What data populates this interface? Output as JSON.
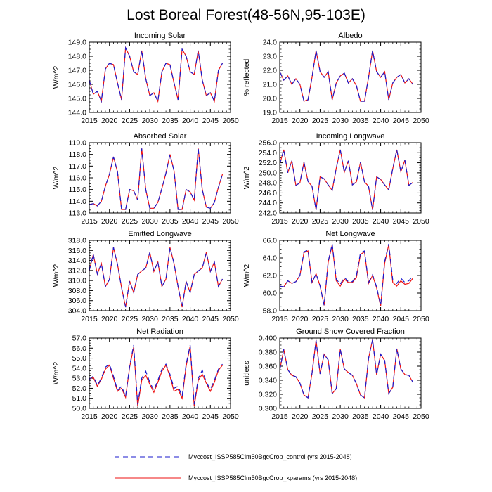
{
  "figure_title": "Lost Boreal Forest(48-56N,95-103E)",
  "colors": {
    "control": "#1a1acc",
    "kparams": "#ee1111",
    "axis": "#000000"
  },
  "legend": [
    {
      "label": "Myccost_ISSP585Clm50BgcCrop_control (yrs 2015-2048)",
      "series": "control",
      "dash": "dashed"
    },
    {
      "label": "Myccost_ISSP585Clm50BgcCrop_kparams (yrs 2015-2048)",
      "series": "kparams",
      "dash": "solid"
    }
  ],
  "chart_data": [
    {
      "type": "line",
      "title": "Incoming Solar",
      "ylabel": "W/m^2",
      "xlim": [
        2015,
        2050
      ],
      "xticks": [
        2015,
        2020,
        2025,
        2030,
        2035,
        2040,
        2045,
        2050
      ],
      "ylim": [
        144,
        149
      ],
      "yticks": [
        "144.0",
        "145.0",
        "146.0",
        "147.0",
        "148.0",
        "149.0"
      ],
      "x": [
        2015,
        2016,
        2017,
        2018,
        2019,
        2020,
        2021,
        2022,
        2023,
        2024,
        2025,
        2026,
        2027,
        2028,
        2029,
        2030,
        2031,
        2032,
        2033,
        2034,
        2035,
        2036,
        2037,
        2038,
        2039,
        2040,
        2041,
        2042,
        2043,
        2044,
        2045,
        2046,
        2047,
        2048
      ],
      "series": [
        {
          "name": "control",
          "values": [
            146.3,
            145.3,
            145.5,
            144.8,
            147.1,
            147.5,
            147.4,
            146.1,
            144.9,
            148.6,
            148.0,
            146.9,
            146.7,
            148.4,
            146.4,
            145.2,
            145.4,
            144.8,
            146.9,
            147.5,
            147.4,
            146.1,
            144.9,
            148.5,
            148.0,
            146.9,
            146.7,
            148.4,
            146.3,
            145.2,
            145.4,
            144.8,
            147.0,
            147.5
          ]
        },
        {
          "name": "kparams",
          "values": [
            146.3,
            145.3,
            145.5,
            144.8,
            147.1,
            147.5,
            147.4,
            146.1,
            144.9,
            148.6,
            148.0,
            146.9,
            146.7,
            148.4,
            146.4,
            145.2,
            145.4,
            144.8,
            146.9,
            147.5,
            147.4,
            146.1,
            144.9,
            148.5,
            148.0,
            146.9,
            146.7,
            148.4,
            146.3,
            145.2,
            145.4,
            144.8,
            147.0,
            147.5
          ]
        }
      ]
    },
    {
      "type": "line",
      "title": "Albedo",
      "ylabel": "% reflected",
      "xlim": [
        2015,
        2050
      ],
      "xticks": [
        2015,
        2020,
        2025,
        2030,
        2035,
        2040,
        2045,
        2050
      ],
      "ylim": [
        19,
        24
      ],
      "yticks": [
        "19.0",
        "20.0",
        "21.0",
        "22.0",
        "23.0",
        "24.0"
      ],
      "x": [
        2015,
        2016,
        2017,
        2018,
        2019,
        2020,
        2021,
        2022,
        2023,
        2024,
        2025,
        2026,
        2027,
        2028,
        2029,
        2030,
        2031,
        2032,
        2033,
        2034,
        2035,
        2036,
        2037,
        2038,
        2039,
        2040,
        2041,
        2042,
        2043,
        2044,
        2045,
        2046,
        2047,
        2048
      ],
      "series": [
        {
          "name": "control",
          "values": [
            21.9,
            21.3,
            21.6,
            21.0,
            21.4,
            21.0,
            19.8,
            19.9,
            21.5,
            23.4,
            21.9,
            21.5,
            21.9,
            19.9,
            21.1,
            21.6,
            21.8,
            21.1,
            21.4,
            20.9,
            19.8,
            19.8,
            21.5,
            23.4,
            21.9,
            21.5,
            21.9,
            19.9,
            21.1,
            21.5,
            21.7,
            21.1,
            21.4,
            21.0
          ]
        },
        {
          "name": "kparams",
          "values": [
            21.9,
            21.3,
            21.6,
            21.0,
            21.4,
            21.0,
            19.8,
            19.9,
            21.5,
            23.4,
            21.9,
            21.5,
            21.9,
            19.9,
            21.1,
            21.6,
            21.8,
            21.1,
            21.4,
            20.9,
            19.8,
            19.8,
            21.5,
            23.4,
            21.9,
            21.5,
            21.9,
            19.9,
            21.1,
            21.5,
            21.7,
            21.1,
            21.4,
            21.0
          ]
        }
      ]
    },
    {
      "type": "line",
      "title": "Absorbed Solar",
      "ylabel": "W/m^2",
      "xlim": [
        2015,
        2050
      ],
      "xticks": [
        2015,
        2020,
        2025,
        2030,
        2035,
        2040,
        2045,
        2050
      ],
      "ylim": [
        113,
        119
      ],
      "yticks": [
        "113.0",
        "114.0",
        "115.0",
        "116.0",
        "117.0",
        "118.0",
        "119.0"
      ],
      "x": [
        2015,
        2016,
        2017,
        2018,
        2019,
        2020,
        2021,
        2022,
        2023,
        2024,
        2025,
        2026,
        2027,
        2028,
        2029,
        2030,
        2031,
        2032,
        2033,
        2034,
        2035,
        2036,
        2037,
        2038,
        2039,
        2040,
        2041,
        2042,
        2043,
        2044,
        2045,
        2046,
        2047,
        2048
      ],
      "series": [
        {
          "name": "control",
          "values": [
            113.7,
            113.8,
            113.6,
            114.0,
            115.3,
            116.3,
            117.8,
            116.5,
            113.3,
            113.3,
            115.0,
            114.9,
            114.1,
            118.5,
            115.0,
            113.4,
            113.4,
            113.9,
            115.1,
            116.4,
            118.0,
            116.6,
            113.3,
            113.3,
            115.0,
            114.8,
            114.1,
            118.5,
            115.0,
            113.5,
            113.4,
            113.9,
            115.2,
            116.3
          ]
        },
        {
          "name": "kparams",
          "values": [
            113.7,
            113.8,
            113.6,
            114.0,
            115.3,
            116.3,
            117.8,
            116.5,
            113.3,
            113.3,
            115.0,
            114.9,
            114.1,
            118.5,
            115.0,
            113.4,
            113.4,
            113.9,
            115.1,
            116.4,
            118.0,
            116.6,
            113.3,
            113.3,
            115.0,
            114.8,
            114.1,
            118.5,
            115.0,
            113.5,
            113.4,
            113.9,
            115.2,
            116.3
          ]
        }
      ]
    },
    {
      "type": "line",
      "title": "Incoming Longwave",
      "ylabel": "W/m^2",
      "xlim": [
        2015,
        2050
      ],
      "xticks": [
        2015,
        2020,
        2025,
        2030,
        2035,
        2040,
        2045,
        2050
      ],
      "ylim": [
        242,
        256
      ],
      "yticks": [
        "242.0",
        "244.0",
        "246.0",
        "248.0",
        "250.0",
        "252.0",
        "254.0",
        "256.0"
      ],
      "x": [
        2015,
        2016,
        2017,
        2018,
        2019,
        2020,
        2021,
        2022,
        2023,
        2024,
        2025,
        2026,
        2027,
        2028,
        2029,
        2030,
        2031,
        2032,
        2033,
        2034,
        2035,
        2036,
        2037,
        2038,
        2039,
        2040,
        2041,
        2042,
        2043,
        2044,
        2045,
        2046,
        2047,
        2048
      ],
      "series": [
        {
          "name": "control",
          "values": [
            251.7,
            254.6,
            250.0,
            252.4,
            247.5,
            248.0,
            252.1,
            248.3,
            247.3,
            242.6,
            249.2,
            248.8,
            247.6,
            246.5,
            250.9,
            254.6,
            250.1,
            252.4,
            247.6,
            248.2,
            252.1,
            248.2,
            247.3,
            242.6,
            249.2,
            248.7,
            247.6,
            246.6,
            250.8,
            254.6,
            250.2,
            252.5,
            247.5,
            248.1
          ]
        },
        {
          "name": "kparams",
          "values": [
            251.7,
            254.6,
            250.0,
            252.4,
            247.5,
            248.0,
            252.1,
            248.3,
            247.3,
            242.6,
            249.2,
            248.8,
            247.6,
            246.5,
            250.9,
            254.6,
            250.1,
            252.4,
            247.6,
            248.2,
            252.1,
            248.2,
            247.3,
            242.6,
            249.2,
            248.7,
            247.6,
            246.6,
            250.8,
            254.6,
            250.2,
            252.5,
            247.5,
            248.1
          ]
        }
      ]
    },
    {
      "type": "line",
      "title": "Emitted Longwave",
      "ylabel": "W/m^2",
      "xlim": [
        2015,
        2050
      ],
      "xticks": [
        2015,
        2020,
        2025,
        2030,
        2035,
        2040,
        2045,
        2050
      ],
      "ylim": [
        304,
        318
      ],
      "yticks": [
        "304.0",
        "306.0",
        "308.0",
        "310.0",
        "312.0",
        "314.0",
        "316.0",
        "318.0"
      ],
      "x": [
        2015,
        2016,
        2017,
        2018,
        2019,
        2020,
        2021,
        2022,
        2023,
        2024,
        2025,
        2026,
        2027,
        2028,
        2029,
        2030,
        2031,
        2032,
        2033,
        2034,
        2035,
        2036,
        2037,
        2038,
        2039,
        2040,
        2041,
        2042,
        2043,
        2044,
        2045,
        2046,
        2047,
        2048
      ],
      "series": [
        {
          "name": "control",
          "values": [
            312.0,
            315.2,
            311.3,
            313.4,
            308.8,
            310.2,
            316.6,
            313.2,
            308.6,
            304.7,
            309.9,
            307.6,
            311.2,
            311.9,
            312.5,
            315.6,
            311.8,
            313.7,
            308.8,
            310.3,
            316.6,
            313.4,
            308.8,
            304.7,
            309.8,
            307.6,
            311.2,
            311.9,
            312.5,
            315.6,
            311.8,
            313.7,
            308.8,
            310.3
          ]
        },
        {
          "name": "kparams",
          "values": [
            312.0,
            315.2,
            311.3,
            313.4,
            308.8,
            310.2,
            316.6,
            313.2,
            308.6,
            304.7,
            309.9,
            307.6,
            311.2,
            311.9,
            312.5,
            315.6,
            311.8,
            313.7,
            308.8,
            310.3,
            316.6,
            313.4,
            308.8,
            304.7,
            309.8,
            307.6,
            311.2,
            311.9,
            312.5,
            315.6,
            311.8,
            313.7,
            308.8,
            310.3
          ]
        }
      ]
    },
    {
      "type": "line",
      "title": "Net Longwave",
      "ylabel": "W/m^2",
      "xlim": [
        2015,
        2050
      ],
      "xticks": [
        2015,
        2020,
        2025,
        2030,
        2035,
        2040,
        2045,
        2050
      ],
      "ylim": [
        58,
        66
      ],
      "yticks": [
        "58.0",
        "60.0",
        "62.0",
        "64.0",
        "66.0"
      ],
      "x": [
        2015,
        2016,
        2017,
        2018,
        2019,
        2020,
        2021,
        2022,
        2023,
        2024,
        2025,
        2026,
        2027,
        2028,
        2029,
        2030,
        2031,
        2032,
        2033,
        2034,
        2035,
        2036,
        2037,
        2038,
        2039,
        2040,
        2041,
        2042,
        2043,
        2044,
        2045,
        2046,
        2047,
        2048
      ],
      "series": [
        {
          "name": "control",
          "values": [
            60.8,
            60.7,
            61.4,
            61.1,
            61.3,
            62.0,
            64.7,
            64.9,
            61.2,
            62.2,
            60.8,
            58.6,
            63.6,
            65.6,
            61.6,
            61.0,
            61.8,
            61.3,
            61.3,
            62.0,
            64.6,
            64.8,
            61.2,
            62.1,
            60.7,
            58.6,
            63.6,
            65.6,
            61.5,
            61.1,
            61.7,
            61.2,
            61.4,
            62.0
          ]
        },
        {
          "name": "kparams",
          "values": [
            60.8,
            60.7,
            61.4,
            61.1,
            61.3,
            62.0,
            64.6,
            64.8,
            61.2,
            62.2,
            60.8,
            58.6,
            63.5,
            65.5,
            61.4,
            60.8,
            61.6,
            61.2,
            61.2,
            61.8,
            64.4,
            64.7,
            61.1,
            62.0,
            60.6,
            58.5,
            63.4,
            65.5,
            61.2,
            60.8,
            61.4,
            61.0,
            61.1,
            61.7
          ]
        }
      ]
    },
    {
      "type": "line",
      "title": "Net Radiation",
      "ylabel": "W/m^2",
      "xlim": [
        2015,
        2050
      ],
      "xticks": [
        2015,
        2020,
        2025,
        2030,
        2035,
        2040,
        2045,
        2050
      ],
      "ylim": [
        50,
        57
      ],
      "yticks": [
        "50.0",
        "51.0",
        "52.0",
        "53.0",
        "54.0",
        "55.0",
        "56.0",
        "57.0"
      ],
      "x": [
        2015,
        2016,
        2017,
        2018,
        2019,
        2020,
        2021,
        2022,
        2023,
        2024,
        2025,
        2026,
        2027,
        2028,
        2029,
        2030,
        2031,
        2032,
        2033,
        2034,
        2035,
        2036,
        2037,
        2038,
        2039,
        2040,
        2041,
        2042,
        2043,
        2044,
        2045,
        2046,
        2047,
        2048
      ],
      "series": [
        {
          "name": "control",
          "values": [
            52.9,
            53.2,
            52.3,
            53.0,
            54.1,
            54.4,
            53.2,
            51.8,
            52.2,
            51.2,
            54.2,
            56.3,
            50.4,
            53.0,
            53.7,
            52.6,
            51.8,
            52.8,
            53.9,
            54.4,
            53.4,
            52.0,
            52.2,
            51.2,
            54.4,
            56.3,
            50.4,
            53.0,
            53.8,
            52.6,
            51.9,
            52.8,
            53.9,
            54.4
          ]
        },
        {
          "name": "kparams",
          "values": [
            52.9,
            53.1,
            52.2,
            52.9,
            53.9,
            54.3,
            53.0,
            51.7,
            52.0,
            51.1,
            54.1,
            56.1,
            50.2,
            52.8,
            53.3,
            52.4,
            51.6,
            52.6,
            53.7,
            54.3,
            53.2,
            51.7,
            51.9,
            51.0,
            54.2,
            56.2,
            50.2,
            52.8,
            53.4,
            52.5,
            51.7,
            52.6,
            53.8,
            54.3
          ]
        }
      ]
    },
    {
      "type": "line",
      "title": "Ground Snow Covered Fraction",
      "ylabel": "unitless",
      "xlim": [
        2015,
        2050
      ],
      "xticks": [
        2015,
        2020,
        2025,
        2030,
        2035,
        2040,
        2045,
        2050
      ],
      "ylim": [
        0.3,
        0.4
      ],
      "yticks": [
        "0.300",
        "0.320",
        "0.340",
        "0.360",
        "0.380",
        "0.400"
      ],
      "x": [
        2015,
        2016,
        2017,
        2018,
        2019,
        2020,
        2021,
        2022,
        2023,
        2024,
        2025,
        2026,
        2027,
        2028,
        2029,
        2030,
        2031,
        2032,
        2033,
        2034,
        2035,
        2036,
        2037,
        2038,
        2039,
        2040,
        2041,
        2042,
        2043,
        2044,
        2045,
        2046,
        2047,
        2048
      ],
      "series": [
        {
          "name": "control",
          "values": [
            0.354,
            0.384,
            0.355,
            0.347,
            0.345,
            0.336,
            0.319,
            0.315,
            0.35,
            0.397,
            0.349,
            0.377,
            0.369,
            0.321,
            0.328,
            0.384,
            0.356,
            0.351,
            0.347,
            0.335,
            0.319,
            0.315,
            0.371,
            0.398,
            0.348,
            0.377,
            0.368,
            0.321,
            0.33,
            0.385,
            0.356,
            0.348,
            0.347,
            0.337
          ]
        },
        {
          "name": "kparams",
          "values": [
            0.354,
            0.384,
            0.355,
            0.347,
            0.345,
            0.336,
            0.319,
            0.315,
            0.35,
            0.397,
            0.349,
            0.377,
            0.369,
            0.321,
            0.328,
            0.384,
            0.356,
            0.351,
            0.347,
            0.335,
            0.319,
            0.315,
            0.371,
            0.398,
            0.348,
            0.377,
            0.368,
            0.321,
            0.33,
            0.385,
            0.356,
            0.348,
            0.347,
            0.337
          ]
        }
      ]
    }
  ]
}
